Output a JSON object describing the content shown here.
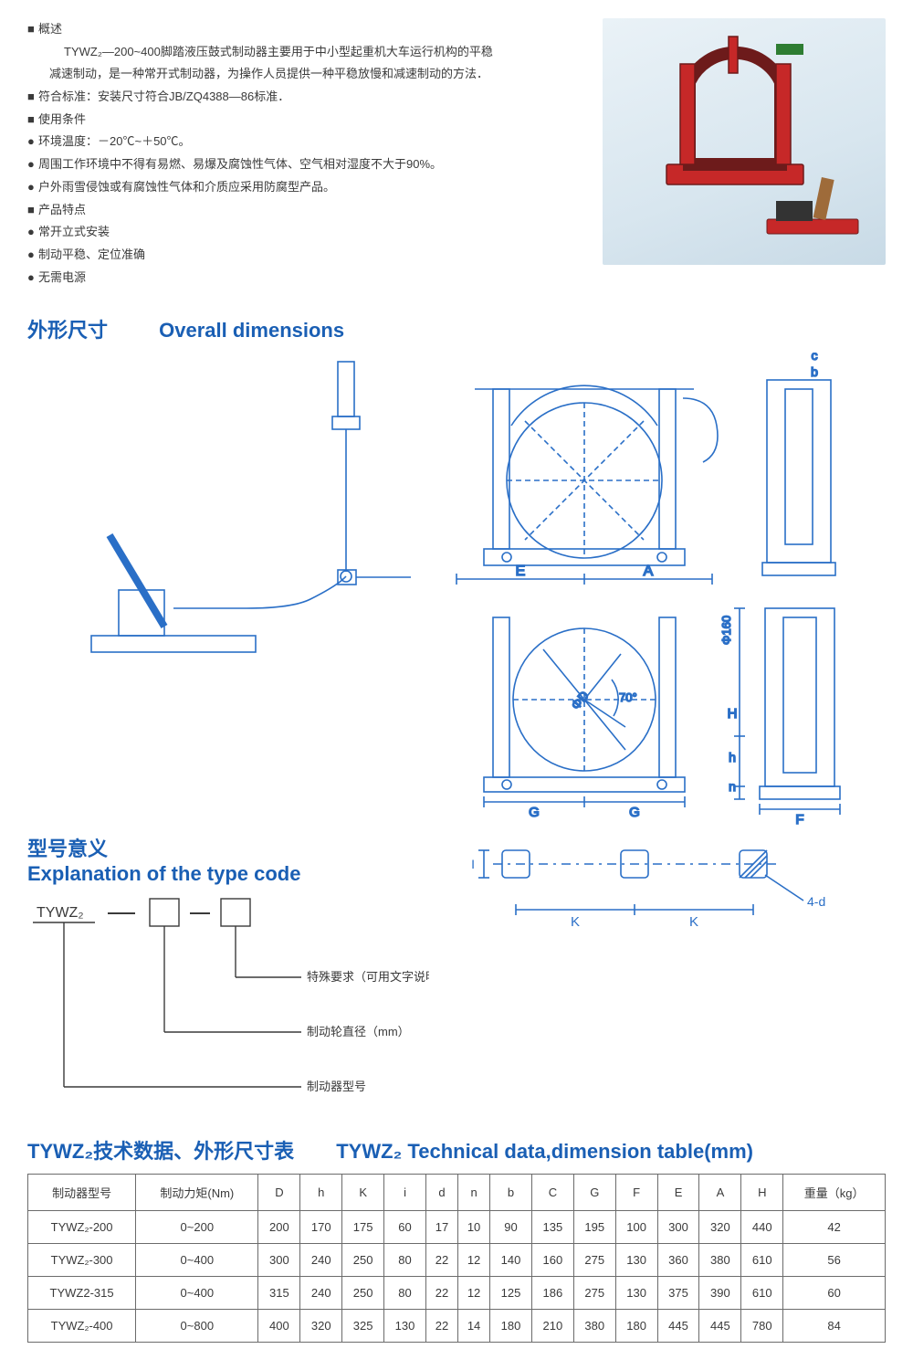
{
  "colors": {
    "text": "#3a3a3a",
    "blue_heading": "#1a5fb4",
    "diagram_stroke": "#2a6fc7",
    "table_border": "#6b6b6b",
    "photo_bg_top": "#eaf2f7",
    "photo_bg_bot": "#c8dae6",
    "brake_red": "#c62828",
    "brake_dark": "#333333"
  },
  "overview": {
    "title": "概述",
    "body1": "TYWZ₂—200~400脚踏液压鼓式制动器主要用于中小型起重机大车运行机构的平稳",
    "body2": "减速制动，是一种常开式制动器，为操作人员提供一种平稳放慢和减速制动的方法．",
    "std_label": "符合标准：",
    "std_text": "安装尺寸符合JB/ZQ4388—86标准．",
    "cond_label": "使用条件",
    "temp_label": "环境温度：",
    "temp_text": "－20℃~＋50℃。",
    "env1": "周围工作环境中不得有易燃、易爆及腐蚀性气体、空气相对湿度不大于90%。",
    "env2": "户外雨雪侵蚀或有腐蚀性气体和介质应采用防腐型产品。",
    "feat_label": "产品特点",
    "feat1": "常开立式安装",
    "feat2": "制动平稳、定位准确",
    "feat3": "无需电源"
  },
  "sec_dims": {
    "cn": "外形尺寸",
    "en": "Overall dimensions"
  },
  "sec_type": {
    "cn": "型号意义",
    "en": "Explanation of the type code"
  },
  "sec_table": {
    "cn": "TYWZ₂技术数据、外形尺寸表",
    "en": "TYWZ₂ Technical data,dimension table(mm)"
  },
  "typecode": {
    "prefix": "TYWZ₂",
    "lines": [
      "特殊要求（可用文字说明）",
      "制动轮直径（mm）",
      "制动器型号"
    ]
  },
  "diagram_labels": {
    "E": "E",
    "A": "A",
    "c": "c",
    "b": "b",
    "G": "G",
    "F": "F",
    "K": "K",
    "I": "I",
    "H": "H",
    "h": "h",
    "n": "n",
    "phiD": "ΦD",
    "phi160": "Φ160",
    "ang70": "70°",
    "d4": "4-d"
  },
  "table": {
    "headers": [
      "制动器型号",
      "制动力矩(Nm)",
      "D",
      "h",
      "K",
      "i",
      "d",
      "n",
      "b",
      "C",
      "G",
      "F",
      "E",
      "A",
      "H",
      "重量（kg）"
    ],
    "rows": [
      [
        "TYWZ₂-200",
        "0~200",
        "200",
        "170",
        "175",
        "60",
        "17",
        "10",
        "90",
        "135",
        "195",
        "100",
        "300",
        "320",
        "440",
        "42"
      ],
      [
        "TYWZ₂-300",
        "0~400",
        "300",
        "240",
        "250",
        "80",
        "22",
        "12",
        "140",
        "160",
        "275",
        "130",
        "360",
        "380",
        "610",
        "56"
      ],
      [
        "TYWZ2-315",
        "0~400",
        "315",
        "240",
        "250",
        "80",
        "22",
        "12",
        "125",
        "186",
        "275",
        "130",
        "375",
        "390",
        "610",
        "60"
      ],
      [
        "TYWZ₂-400",
        "0~800",
        "400",
        "320",
        "325",
        "130",
        "22",
        "14",
        "180",
        "210",
        "380",
        "180",
        "445",
        "445",
        "780",
        "84"
      ]
    ]
  }
}
